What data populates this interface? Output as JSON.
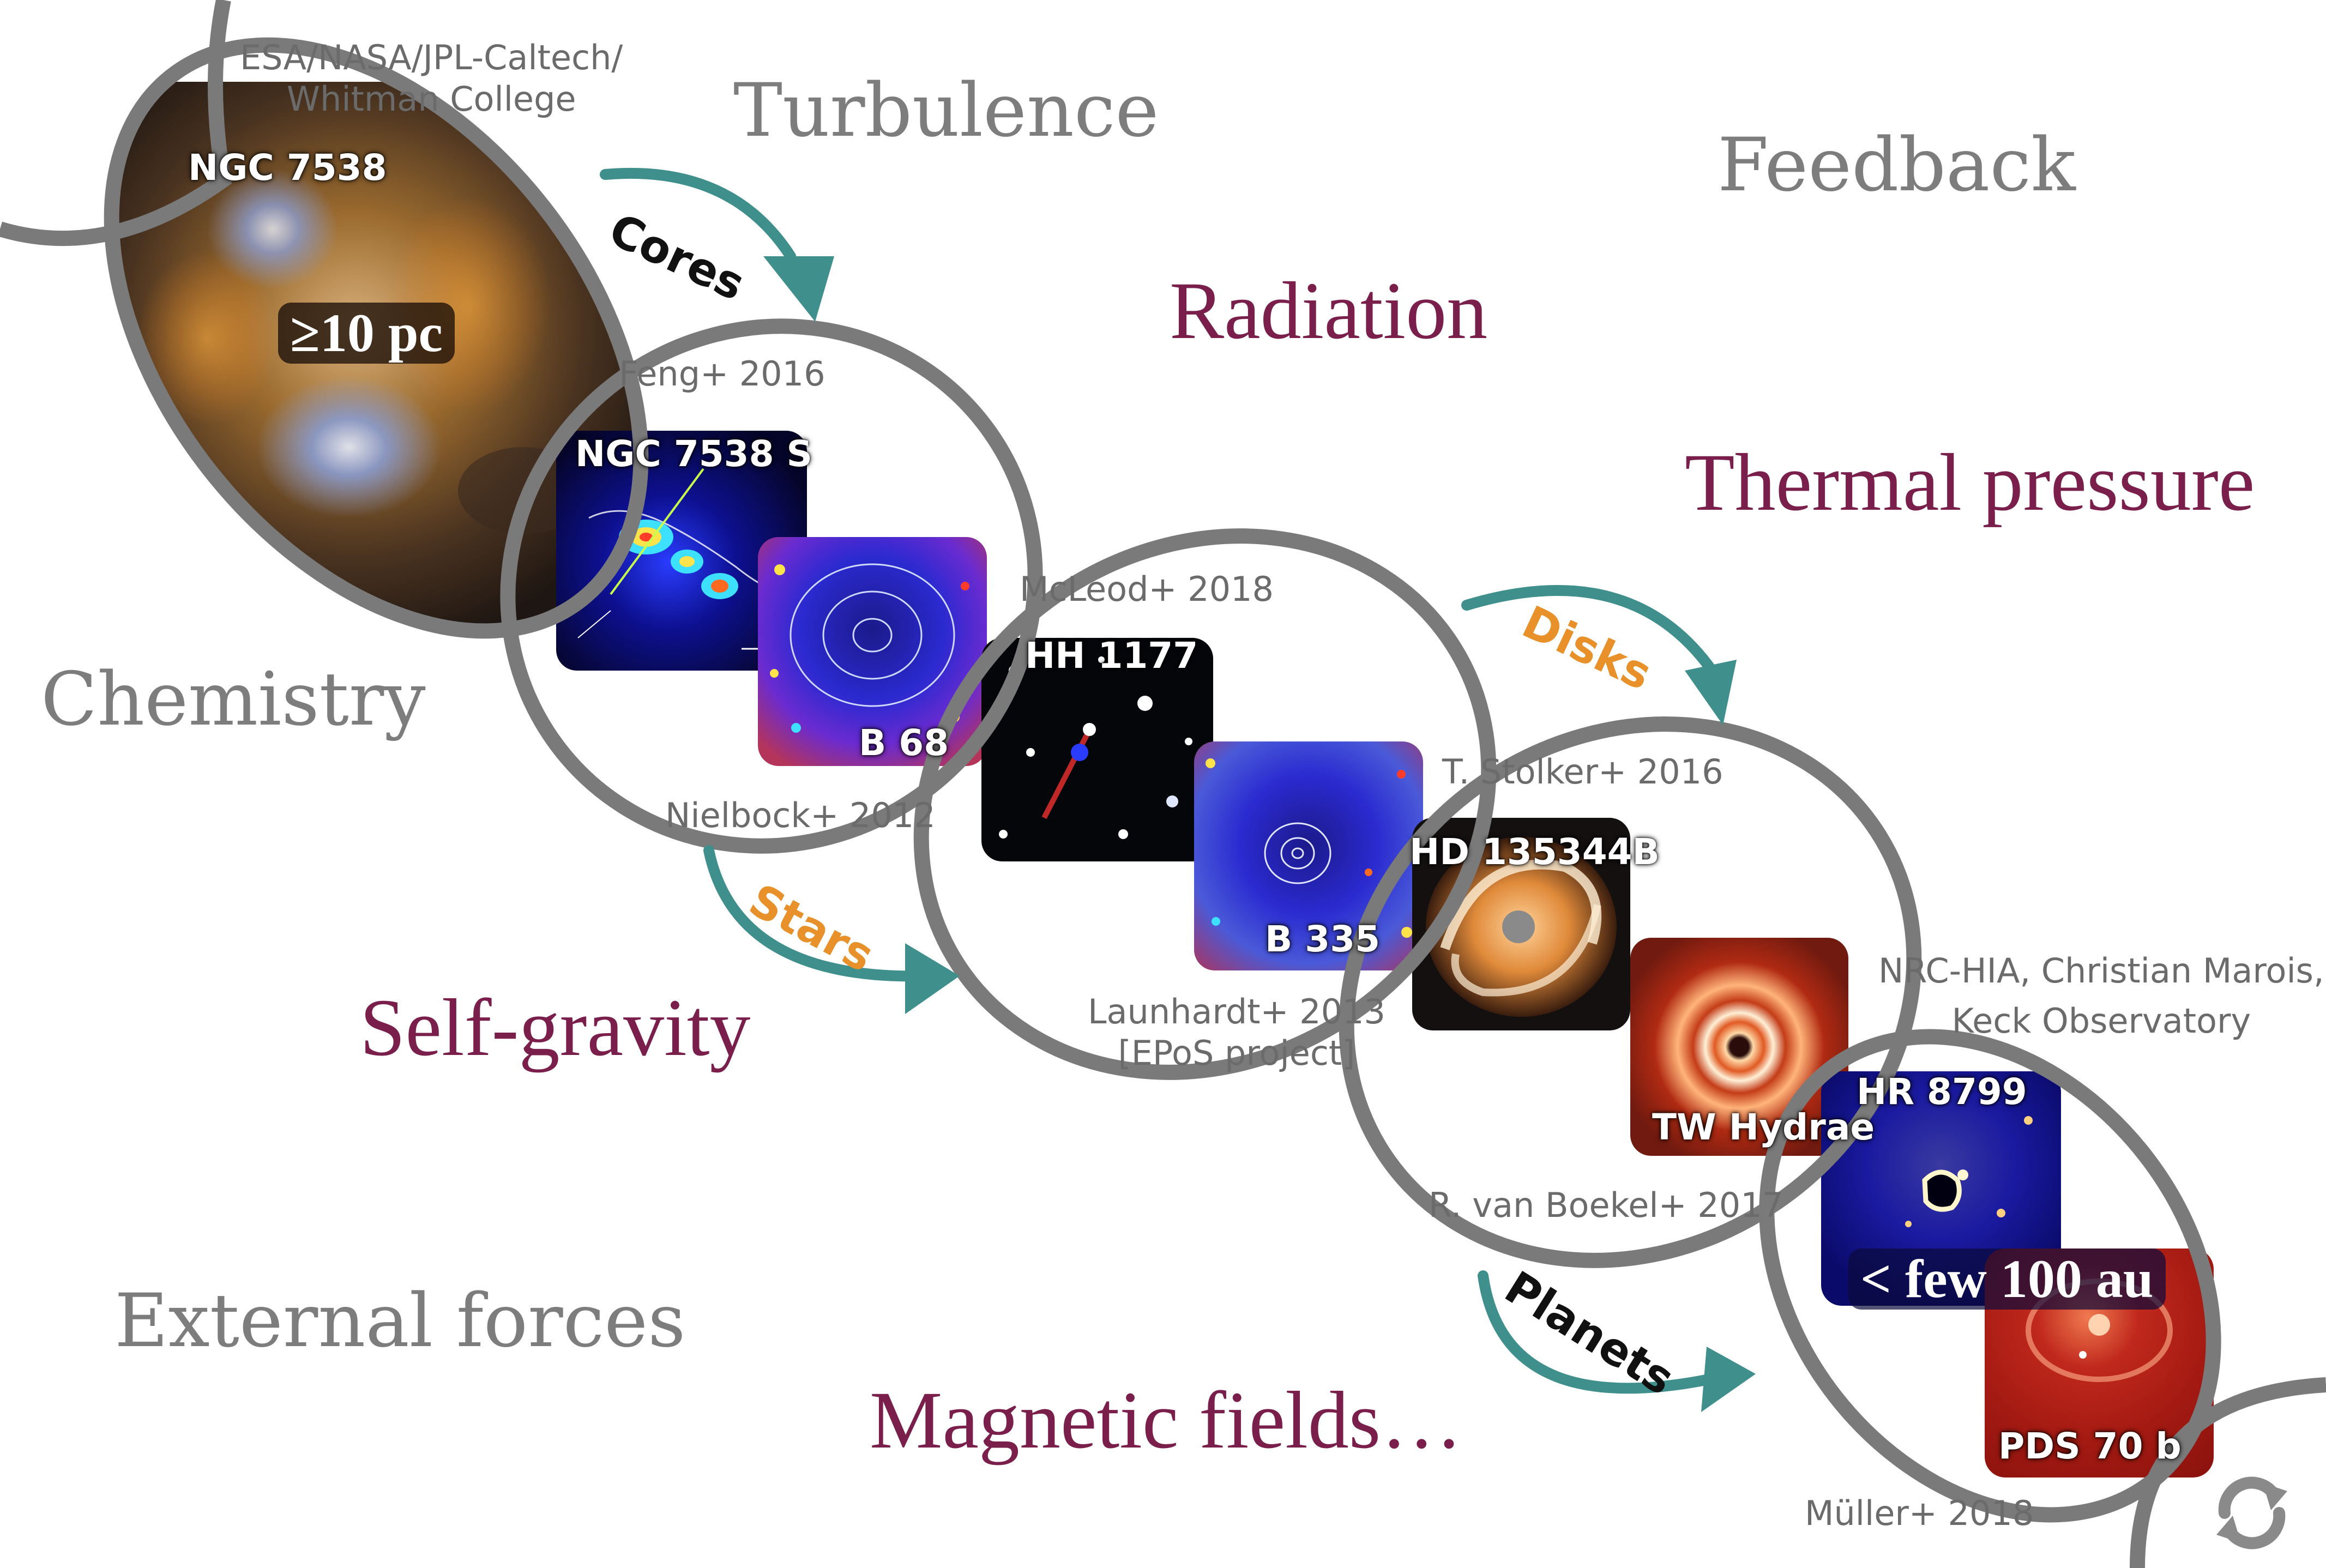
{
  "colors": {
    "ring": "#7a7a7a",
    "arrow": "#3f8f8c",
    "label_orange": "#e8912a",
    "label_dark": "#111111",
    "physics_purple": "#7a1f4b",
    "physics_gray": "#7d7d7d"
  },
  "physics": {
    "turbulence": "Turbulence",
    "feedback": "Feedback",
    "radiation": "Radiation",
    "thermal_pressure": "Thermal pressure",
    "chemistry": "Chemistry",
    "self_gravity": "Self-gravity",
    "external_forces": "External forces",
    "magnetic_fields": "Magnetic fields…"
  },
  "arrows": {
    "cores": "Cores",
    "stars": "Stars",
    "disks": "Disks",
    "planets": "Planets"
  },
  "credits": {
    "esa_line1": "ESA/NASA/JPL-Caltech/",
    "esa_line2": "Whitman College",
    "feng": "Feng+ 2016",
    "nielbock": "Nielbock+ 2012",
    "mcleod": "McLeod+ 2018",
    "launhardt_line1": "Launhardt+ 2013",
    "launhardt_line2": "[EPoS project]",
    "stolker": "T. Stolker+ 2016",
    "vanboekel": "R. van Boekel+ 2017",
    "nrc_line1": "NRC-HIA, Christian Marois,",
    "nrc_line2": "Keck Observatory",
    "muller": "Müller+ 2018"
  },
  "images": {
    "ngc7538": "NGC 7538",
    "ngc7538s": "NGC 7538 S",
    "b68": "B 68",
    "hh1177": "HH 1177",
    "b335": "B 335",
    "hd135344b": "HD 135344B",
    "twhydrae": "TW Hydrae",
    "hr8799": "HR 8799",
    "pds70b": "PDS 70 b"
  },
  "scales": {
    "large": "≥10 pc",
    "small": "< few 100 au"
  },
  "icons": {
    "cycle": "refresh-cycle-icon"
  }
}
